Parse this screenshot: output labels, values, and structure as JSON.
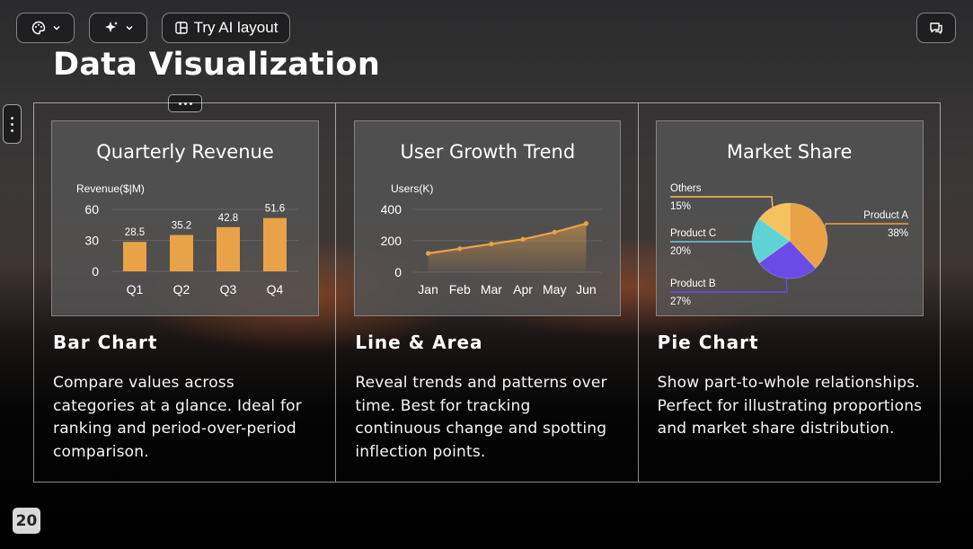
{
  "toolbar": {
    "theme_icon": "palette-icon",
    "ai_icon": "sparkle-icon",
    "layout_label": "Try AI layout",
    "comment_icon": "comment-icon"
  },
  "slide": {
    "title": "Data Visualization",
    "page_number": "20"
  },
  "cards": [
    {
      "chart_title": "Quarterly Revenue",
      "heading": "Bar Chart",
      "description": "Compare values across categories at a glance. Ideal for ranking and period-over-period comparison."
    },
    {
      "chart_title": "User Growth Trend",
      "heading": "Line & Area",
      "description": "Reveal trends and patterns over time. Best for tracking continuous change and spotting inflection points."
    },
    {
      "chart_title": "Market Share",
      "heading": "Pie Chart",
      "description": "Show part-to-whole relationships. Perfect for illustrating proportions and market share distribution."
    }
  ],
  "colors": {
    "accent_orange": "#e9a247",
    "teal": "#5fd3d3",
    "purple": "#6a4be6",
    "yellow": "#f6c15f"
  },
  "chart_data": [
    {
      "type": "bar",
      "title": "Quarterly Revenue",
      "ylabel": "Revenue($|M)",
      "categories": [
        "Q1",
        "Q2",
        "Q3",
        "Q4"
      ],
      "values": [
        28.5,
        35.2,
        42.8,
        51.6
      ],
      "data_labels": [
        "28.5",
        "35.2",
        "42.8",
        "51.6"
      ],
      "yticks": [
        0,
        30,
        60
      ],
      "ylim": [
        0,
        60
      ]
    },
    {
      "type": "area",
      "title": "User Growth Trend",
      "ylabel": "Users(K)",
      "categories": [
        "Jan",
        "Feb",
        "Mar",
        "Apr",
        "May",
        "Jun"
      ],
      "values": [
        120,
        150,
        180,
        210,
        255,
        310
      ],
      "yticks": [
        0,
        200,
        400
      ],
      "ylim": [
        0,
        400
      ]
    },
    {
      "type": "pie",
      "title": "Market Share",
      "slices": [
        {
          "label": "Product A",
          "value": 38,
          "display": "38%",
          "color": "#e9a247"
        },
        {
          "label": "Product B",
          "value": 27,
          "display": "27%",
          "color": "#6a4be6"
        },
        {
          "label": "Product C",
          "value": 20,
          "display": "20%",
          "color": "#5fd3d3"
        },
        {
          "label": "Others",
          "value": 15,
          "display": "15%",
          "color": "#f6c15f"
        }
      ]
    }
  ]
}
